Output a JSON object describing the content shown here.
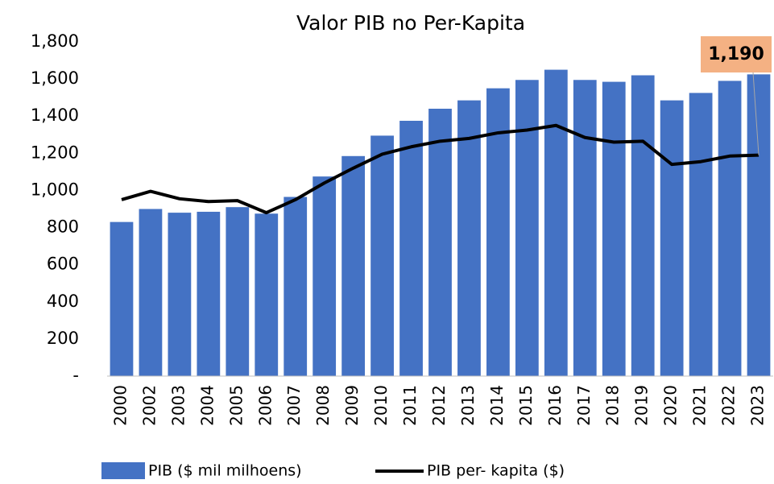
{
  "chart_data": {
    "type": "bar-line",
    "title": "Valor PIB no Per-Kapita",
    "categories": [
      "2000",
      "2002",
      "2003",
      "2004",
      "2005",
      "2006",
      "2007",
      "2008",
      "2009",
      "2010",
      "2011",
      "2012",
      "2013",
      "2014",
      "2015",
      "2016",
      "2017",
      "2018",
      "2019",
      "2020",
      "2021",
      "2022",
      "2023"
    ],
    "series": [
      {
        "name": "PIB ($ mil milhoens)",
        "type": "bar",
        "color": "#4472c4",
        "values": [
          830,
          900,
          880,
          885,
          910,
          875,
          965,
          1075,
          1185,
          1295,
          1375,
          1440,
          1485,
          1550,
          1595,
          1650,
          1595,
          1585,
          1620,
          1485,
          1525,
          1590,
          1625
        ]
      },
      {
        "name": "PIB per- kapita ($)",
        "type": "line",
        "color": "#000000",
        "values": [
          950,
          995,
          955,
          940,
          945,
          880,
          950,
          1040,
          1120,
          1195,
          1235,
          1265,
          1280,
          1310,
          1325,
          1350,
          1285,
          1260,
          1265,
          1140,
          1155,
          1185,
          1190
        ],
        "value_labels": [
          null,
          null,
          null,
          null,
          null,
          null,
          null,
          null,
          null,
          null,
          null,
          null,
          null,
          null,
          null,
          null,
          null,
          null,
          null,
          null,
          null,
          null,
          "1,190"
        ]
      }
    ],
    "ylim": [
      0,
      1800
    ],
    "yticks": [
      {
        "value": 0,
        "label": "-"
      },
      200,
      400,
      600,
      800,
      {
        "value": 1000,
        "label": "1,000"
      },
      {
        "value": 1200,
        "label": "1,200"
      },
      {
        "value": 1400,
        "label": "1,400"
      },
      {
        "value": 1600,
        "label": "1,600"
      },
      {
        "value": 1800,
        "label": "1,800"
      }
    ],
    "grid": false,
    "legend": "bottom"
  }
}
